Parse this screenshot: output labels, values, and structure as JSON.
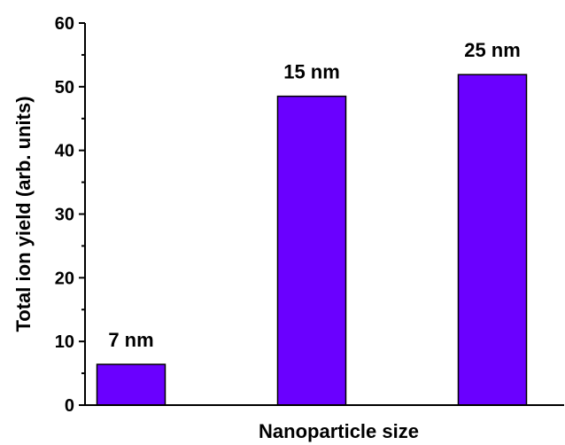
{
  "chart_data": {
    "type": "bar",
    "categories": [
      "7 nm",
      "15 nm",
      "25 nm"
    ],
    "values": [
      6.4,
      48.5,
      51.9
    ],
    "bar_labels": [
      "7 nm",
      "15 nm",
      "25 nm"
    ],
    "title": "",
    "xlabel": "Nanoparticle size",
    "ylabel": "Total ion yield (arb. units)",
    "ylim": [
      0,
      60
    ],
    "yticks": [
      0,
      10,
      20,
      30,
      40,
      50,
      60
    ],
    "x_tick_labels_shown": false,
    "grid": false,
    "legend": "none",
    "colors": {
      "bar_fill": "#6a00ff",
      "bar_stroke": "#000000",
      "axis": "#000000"
    }
  }
}
